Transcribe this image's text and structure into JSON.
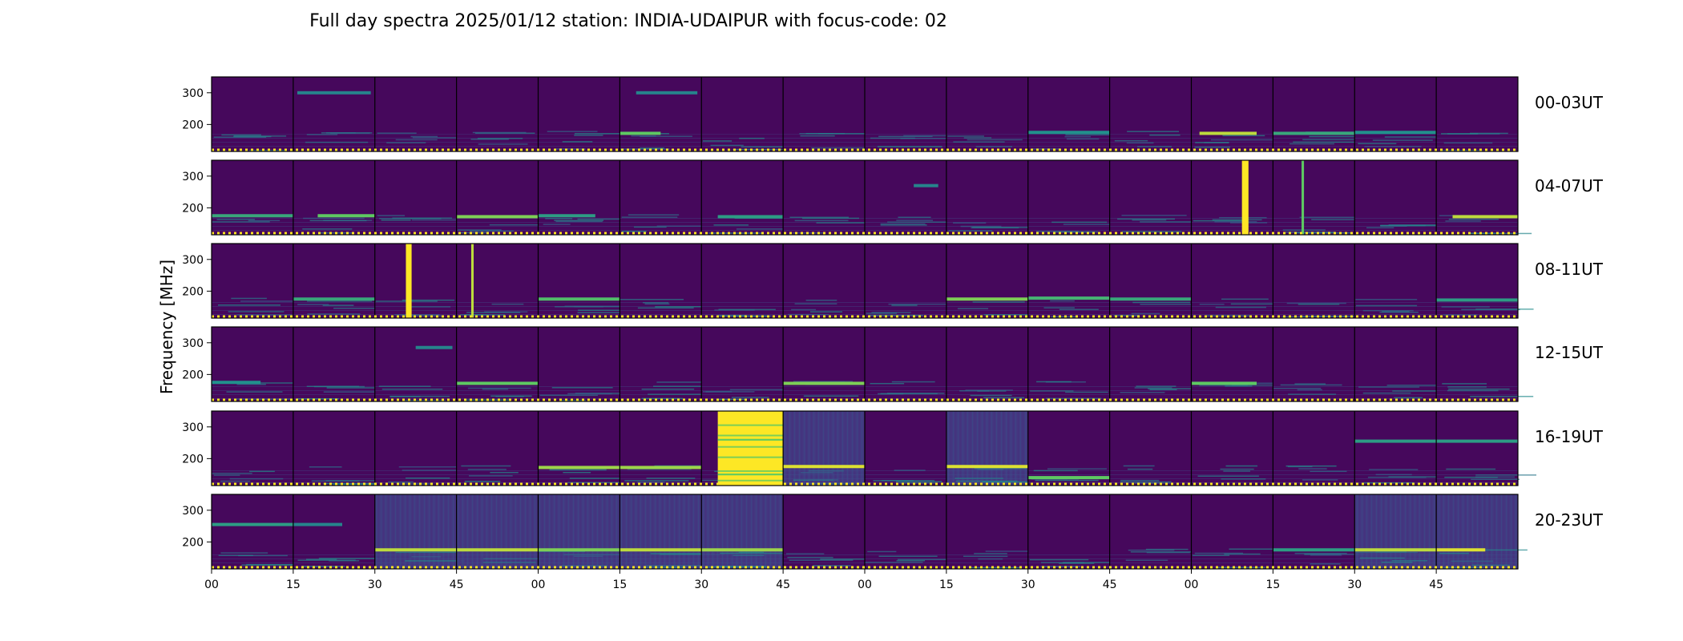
{
  "chart_data": {
    "type": "heatmap",
    "title": "Full day spectra 2025/01/12 station: INDIA-UDAIPUR with focus-code: 02",
    "ylabel": "Frequency [MHz]",
    "xlabel": "",
    "ylim": [
      115,
      350
    ],
    "yticks": [
      200,
      300
    ],
    "colormap": "viridis",
    "colors": {
      "background": "#440154",
      "panel": "#46085c",
      "low": "#482878",
      "mid": "#21918c",
      "high": "#fde725"
    },
    "rows": [
      {
        "label": "00-03UT",
        "features": [
          {
            "col": 1,
            "f": 300,
            "level": 0.45,
            "x0": 0.05,
            "x1": 0.95
          },
          {
            "col": 5,
            "f": 300,
            "level": 0.45,
            "x0": 0.2,
            "x1": 0.95
          },
          {
            "col": 5,
            "f": 172,
            "level": 0.75,
            "x0": 0.0,
            "x1": 0.5
          },
          {
            "col": 12,
            "f": 172,
            "level": 0.9,
            "x0": 0.1,
            "x1": 0.8
          },
          {
            "col": 13,
            "f": 172,
            "level": 0.6,
            "x0": 0.0,
            "x1": 1.0
          },
          {
            "col": 10,
            "f": 175,
            "level": 0.5,
            "x0": 0.0,
            "x1": 1.0
          },
          {
            "col": 14,
            "f": 175,
            "level": 0.5,
            "x0": 0.0,
            "x1": 1.0
          }
        ]
      },
      {
        "label": "04-07UT",
        "features": [
          {
            "col": 0,
            "f": 175,
            "level": 0.6,
            "x0": 0.0,
            "x1": 1.0
          },
          {
            "col": 1,
            "f": 175,
            "level": 0.75,
            "x0": 0.3,
            "x1": 1.0
          },
          {
            "col": 3,
            "f": 172,
            "level": 0.8,
            "x0": 0.0,
            "x1": 1.0
          },
          {
            "col": 4,
            "f": 175,
            "level": 0.55,
            "x0": 0.0,
            "x1": 0.7
          },
          {
            "col": 8,
            "f": 270,
            "level": 0.45,
            "x0": 0.6,
            "x1": 0.9
          },
          {
            "col": 15,
            "f": 172,
            "level": 0.9,
            "x0": 0.2,
            "x1": 1.0
          },
          {
            "col": 6,
            "f": 172,
            "level": 0.55,
            "x0": 0.2,
            "x1": 1.0
          }
        ],
        "bursts": [
          {
            "col": 12,
            "x": 0.62,
            "w": 0.08,
            "level": 1.0
          },
          {
            "col": 13,
            "x": 0.35,
            "w": 0.03,
            "level": 0.75
          }
        ]
      },
      {
        "label": "08-11UT",
        "features": [
          {
            "col": 1,
            "f": 175,
            "level": 0.6,
            "x0": 0.0,
            "x1": 1.0
          },
          {
            "col": 4,
            "f": 175,
            "level": 0.7,
            "x0": 0.0,
            "x1": 1.0
          },
          {
            "col": 9,
            "f": 175,
            "level": 0.8,
            "x0": 0.0,
            "x1": 1.0
          },
          {
            "col": 10,
            "f": 178,
            "level": 0.65,
            "x0": 0.0,
            "x1": 1.0
          },
          {
            "col": 11,
            "f": 175,
            "level": 0.6,
            "x0": 0.0,
            "x1": 1.0
          },
          {
            "col": 15,
            "f": 172,
            "level": 0.55,
            "x0": 0.0,
            "x1": 1.0
          }
        ],
        "bursts": [
          {
            "col": 2,
            "x": 0.38,
            "w": 0.07,
            "level": 1.0
          },
          {
            "col": 3,
            "x": 0.18,
            "w": 0.03,
            "level": 0.9
          }
        ]
      },
      {
        "label": "12-15UT",
        "features": [
          {
            "col": 3,
            "f": 172,
            "level": 0.75,
            "x0": 0.0,
            "x1": 1.0
          },
          {
            "col": 7,
            "f": 172,
            "level": 0.8,
            "x0": 0.0,
            "x1": 1.0
          },
          {
            "col": 12,
            "f": 172,
            "level": 0.75,
            "x0": 0.0,
            "x1": 0.8
          },
          {
            "col": 0,
            "f": 175,
            "level": 0.5,
            "x0": 0.0,
            "x1": 0.6
          },
          {
            "col": 2,
            "f": 285,
            "level": 0.45,
            "x0": 0.5,
            "x1": 0.95
          }
        ]
      },
      {
        "label": "16-19UT",
        "features": [
          {
            "col": 4,
            "f": 172,
            "level": 0.85,
            "x0": 0.0,
            "x1": 1.0
          },
          {
            "col": 5,
            "f": 172,
            "level": 0.85,
            "x0": 0.0,
            "x1": 1.0
          },
          {
            "col": 7,
            "f": 175,
            "level": 0.95,
            "x0": 0.0,
            "x1": 1.0
          },
          {
            "col": 9,
            "f": 175,
            "level": 0.95,
            "x0": 0.0,
            "x1": 1.0
          },
          {
            "col": 10,
            "f": 140,
            "level": 0.75,
            "x0": 0.0,
            "x1": 1.0
          },
          {
            "col": 14,
            "f": 255,
            "level": 0.55,
            "x0": 0.0,
            "x1": 1.0
          },
          {
            "col": 15,
            "f": 255,
            "level": 0.55,
            "x0": 0.0,
            "x1": 1.0
          }
        ],
        "bursts": [
          {
            "col": 6,
            "x": 0.2,
            "w": 0.8,
            "level": 1.0
          }
        ],
        "hazy": [
          7,
          9
        ]
      },
      {
        "label": "20-23UT",
        "features": [
          {
            "col": 0,
            "f": 255,
            "level": 0.55,
            "x0": 0.0,
            "x1": 1.0
          },
          {
            "col": 1,
            "f": 255,
            "level": 0.45,
            "x0": 0.0,
            "x1": 0.6
          },
          {
            "col": 2,
            "f": 175,
            "level": 0.9,
            "x0": 0.0,
            "x1": 1.0
          },
          {
            "col": 3,
            "f": 175,
            "level": 0.9,
            "x0": 0.0,
            "x1": 1.0
          },
          {
            "col": 4,
            "f": 175,
            "level": 0.8,
            "x0": 0.0,
            "x1": 1.0
          },
          {
            "col": 5,
            "f": 175,
            "level": 0.9,
            "x0": 0.0,
            "x1": 1.0
          },
          {
            "col": 6,
            "f": 175,
            "level": 0.85,
            "x0": 0.0,
            "x1": 1.0
          },
          {
            "col": 13,
            "f": 175,
            "level": 0.55,
            "x0": 0.0,
            "x1": 1.0
          },
          {
            "col": 14,
            "f": 175,
            "level": 0.9,
            "x0": 0.0,
            "x1": 1.0
          },
          {
            "col": 15,
            "f": 175,
            "level": 0.95,
            "x0": 0.0,
            "x1": 0.6
          }
        ],
        "hazy": [
          2,
          3,
          4,
          5,
          6,
          14,
          15
        ]
      }
    ],
    "xticklabels": [
      "00",
      "15",
      "30",
      "45",
      "00",
      "15",
      "30",
      "45",
      "00",
      "15",
      "30",
      "45",
      "00",
      "15",
      "30",
      "45"
    ],
    "grid": false
  }
}
